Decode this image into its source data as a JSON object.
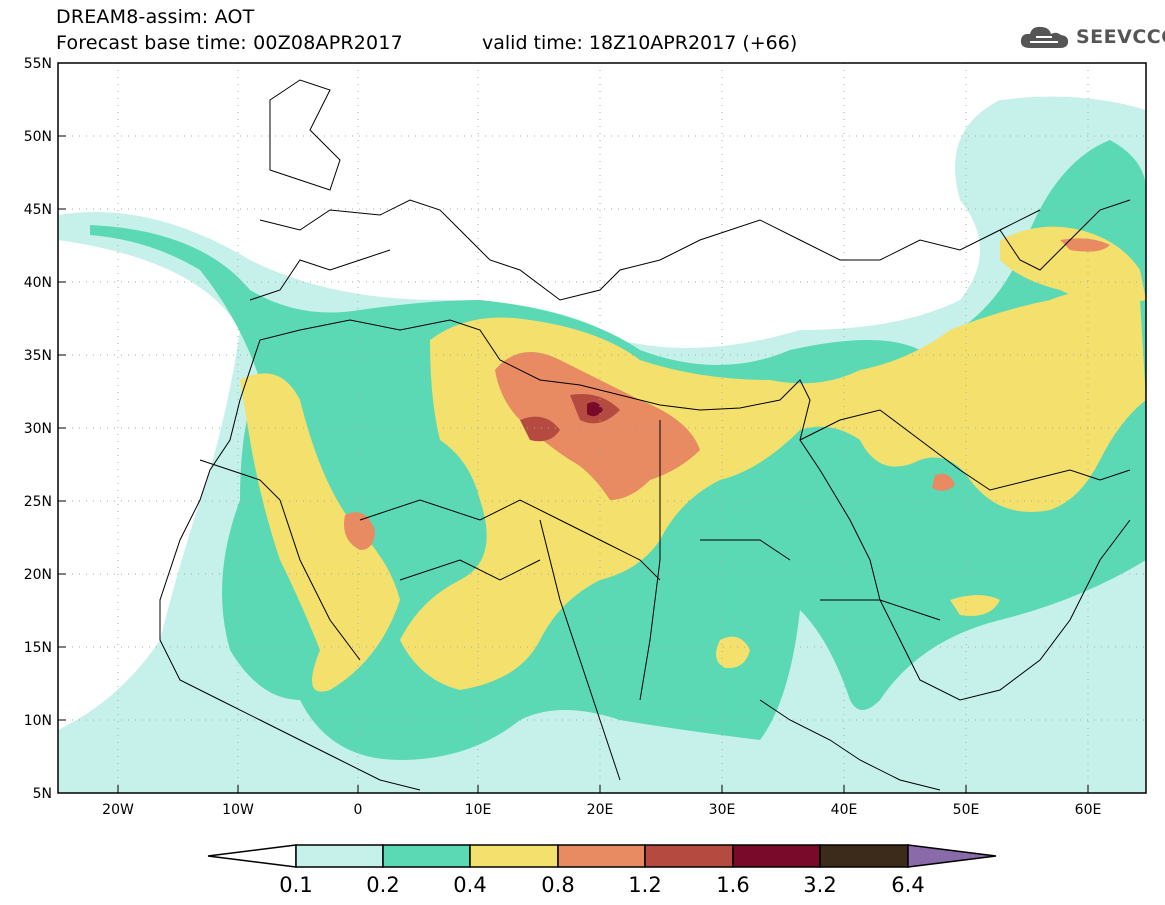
{
  "header": {
    "title_line1": "DREAM8-assim: AOT",
    "title_line2": "Forecast base time: 00Z08APR2017",
    "valid_time": "valid time: 18Z10APR2017 (+66)"
  },
  "logo": {
    "text": "SEEVCCC",
    "icon": "cloud-icon"
  },
  "map": {
    "lat_labels": [
      "55N",
      "50N",
      "45N",
      "40N",
      "35N",
      "30N",
      "25N",
      "20N",
      "15N",
      "10N",
      "5N"
    ],
    "lon_labels": [
      "20W",
      "10W",
      "0",
      "10E",
      "20E",
      "30E",
      "40E",
      "50E",
      "60E"
    ],
    "extent": {
      "lon": [
        -25,
        65
      ],
      "lat": [
        5,
        55
      ]
    }
  },
  "legend": {
    "labels": [
      "0.1",
      "0.2",
      "0.4",
      "0.8",
      "1.2",
      "1.6",
      "3.2",
      "6.4"
    ],
    "colors": [
      "#ffffff",
      "#c5f1ea",
      "#5ad9b4",
      "#f4e06c",
      "#e88a62",
      "#b44a40",
      "#7a0a2a",
      "#3c2a1a",
      "#8a6aa8"
    ]
  }
}
